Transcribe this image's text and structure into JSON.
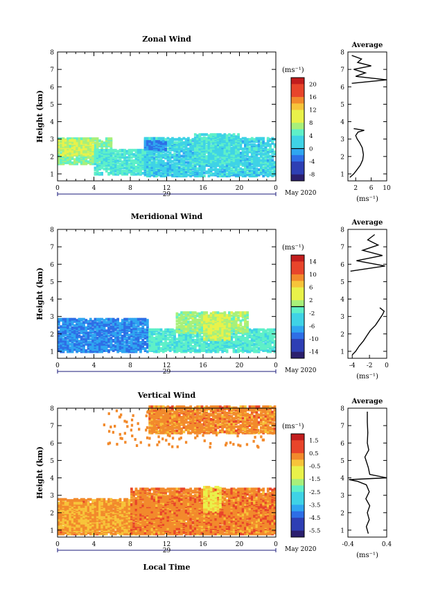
{
  "figure": {
    "date_label": "May 2020",
    "day_label": "29",
    "xlabel": "Local Time",
    "colors": {
      "axis": "#000000",
      "background": "#ffffff",
      "jet": [
        "#2b1f6e",
        "#2e3fb4",
        "#2e6ee6",
        "#2fa6f0",
        "#3fd3e6",
        "#5ff0c8",
        "#a8f07a",
        "#e9f24a",
        "#f7c43a",
        "#f28a2c",
        "#e8452b",
        "#c21d1d"
      ]
    }
  },
  "chart_data": [
    {
      "id": "zonal",
      "type": "heatmap",
      "title": "Zonal Wind",
      "ylabel": "Height (km)",
      "x_ticks": [
        "0",
        "4",
        "8",
        "12",
        "16",
        "20",
        "0"
      ],
      "y_ticks": [
        "1",
        "2",
        "3",
        "4",
        "5",
        "6",
        "7",
        "8"
      ],
      "xlim": [
        0,
        24
      ],
      "ylim": [
        0.6,
        8
      ],
      "colorbar": {
        "unit": "(ms⁻¹)",
        "ticks": [
          "20",
          "16",
          "12",
          "8",
          "4",
          "0",
          "-4",
          "-8"
        ],
        "range": [
          -10,
          22
        ],
        "zero_line": 0
      },
      "field": {
        "regions": [
          {
            "x": [
              0,
              6
            ],
            "y": [
              1.5,
              3.0
            ],
            "value": 6
          },
          {
            "x": [
              0,
              4
            ],
            "y": [
              2.0,
              2.9
            ],
            "value": 9
          },
          {
            "x": [
              4,
              10
            ],
            "y": [
              0.9,
              2.3
            ],
            "value": 4
          },
          {
            "x": [
              9.5,
              24
            ],
            "y": [
              0.8,
              3.0
            ],
            "value": 2
          },
          {
            "x": [
              15,
              20
            ],
            "y": [
              1.5,
              3.2
            ],
            "value": 3
          },
          {
            "x": [
              9.5,
              12
            ],
            "y": [
              2.3,
              2.8
            ],
            "value": -2
          }
        ]
      },
      "average_profile": {
        "title": "Average",
        "xlabel": "(ms⁻¹)",
        "x_ticks": [
          "2",
          "6",
          "10"
        ],
        "xlim": [
          0,
          10
        ],
        "height": [
          0.8,
          1.0,
          1.2,
          1.5,
          1.8,
          2.1,
          2.5,
          2.8,
          3.0,
          3.2,
          3.4,
          3.5,
          3.6,
          6.2,
          6.4,
          6.6,
          6.8,
          7.0,
          7.2,
          7.4,
          7.6,
          7.8
        ],
        "values": [
          0.5,
          1.5,
          2.2,
          3.2,
          3.8,
          4.0,
          3.7,
          3.0,
          2.4,
          2.0,
          2.6,
          4.2,
          1.5,
          1.0,
          10.0,
          2.0,
          4.5,
          1.5,
          6.0,
          2.5,
          3.5,
          1.0
        ]
      }
    },
    {
      "id": "meridional",
      "type": "heatmap",
      "title": "Meridional Wind",
      "ylabel": "Height (km)",
      "x_ticks": [
        "0",
        "4",
        "8",
        "12",
        "16",
        "20",
        "0"
      ],
      "y_ticks": [
        "1",
        "2",
        "3",
        "4",
        "5",
        "6",
        "7",
        "8"
      ],
      "xlim": [
        0,
        24
      ],
      "ylim": [
        0.6,
        8
      ],
      "colorbar": {
        "unit": "(ms⁻¹)",
        "ticks": [
          "14",
          "10",
          "6",
          "2",
          "-2",
          "-6",
          "-10",
          "-14"
        ],
        "range": [
          -16,
          16
        ],
        "zero_line": 0
      },
      "field": {
        "regions": [
          {
            "x": [
              0,
              10
            ],
            "y": [
              0.9,
              2.8
            ],
            "value": -8
          },
          {
            "x": [
              10,
              24
            ],
            "y": [
              0.9,
              2.2
            ],
            "value": -2
          },
          {
            "x": [
              13,
              21
            ],
            "y": [
              2.0,
              3.2
            ],
            "value": 1
          },
          {
            "x": [
              16,
              19
            ],
            "y": [
              1.6,
              3.0
            ],
            "value": 3
          }
        ]
      },
      "average_profile": {
        "title": "Average",
        "xlabel": "(ms⁻¹)",
        "x_ticks": [
          "-4",
          "-2",
          "0"
        ],
        "xlim": [
          -4.5,
          0
        ],
        "height": [
          0.8,
          1.0,
          1.3,
          1.6,
          1.9,
          2.2,
          2.5,
          2.8,
          3.1,
          3.3,
          3.5,
          5.6,
          5.9,
          6.2,
          6.5,
          6.8,
          7.1,
          7.4,
          7.7
        ],
        "values": [
          -4.0,
          -3.6,
          -3.2,
          -2.7,
          -2.3,
          -1.9,
          -1.3,
          -0.9,
          -0.5,
          -0.3,
          -0.8,
          -4.2,
          -0.2,
          -3.5,
          -0.5,
          -2.8,
          -1.0,
          -2.2,
          -1.4
        ]
      }
    },
    {
      "id": "vertical",
      "type": "heatmap",
      "title": "Vertical Wind",
      "ylabel": "Height (km)",
      "x_ticks": [
        "0",
        "4",
        "8",
        "12",
        "16",
        "20",
        "0"
      ],
      "y_ticks": [
        "1",
        "2",
        "3",
        "4",
        "5",
        "6",
        "7",
        "8"
      ],
      "xlim": [
        0,
        24
      ],
      "ylim": [
        0.6,
        8
      ],
      "colorbar": {
        "unit": "(ms⁻¹)",
        "ticks": [
          "1.5",
          "0.5",
          "-0.5",
          "-1.5",
          "-2.5",
          "-3.5",
          "-4.5",
          "-5.5"
        ],
        "range": [
          -6,
          2
        ],
        "zero_line": null
      },
      "field": {
        "regions": [
          {
            "x": [
              0,
              24
            ],
            "y": [
              0.7,
              2.7
            ],
            "value": 0.2
          },
          {
            "x": [
              0,
              8
            ],
            "y": [
              0.9,
              2.5
            ],
            "value": 0.0
          },
          {
            "x": [
              8,
              24
            ],
            "y": [
              0.7,
              3.3
            ],
            "value": 0.4
          },
          {
            "x": [
              16,
              18
            ],
            "y": [
              2.0,
              3.4
            ],
            "value": -0.8
          },
          {
            "x": [
              10,
              24
            ],
            "y": [
              6.5,
              8.0
            ],
            "value": 0.3
          }
        ]
      },
      "average_profile": {
        "title": "Average",
        "xlabel": "(ms⁻¹)",
        "x_ticks": [
          "-0.4",
          "0.4"
        ],
        "xlim": [
          -0.4,
          0.4
        ],
        "height": [
          0.8,
          1.2,
          1.6,
          2.0,
          2.4,
          2.8,
          3.2,
          3.6,
          3.8,
          3.9,
          4.0,
          4.2,
          4.6,
          5.2,
          5.6,
          6.0,
          6.6,
          7.2,
          7.8
        ],
        "values": [
          0.02,
          -0.02,
          0.04,
          0.0,
          0.05,
          -0.03,
          0.04,
          -0.02,
          -0.2,
          -0.38,
          0.4,
          0.05,
          0.02,
          -0.05,
          0.03,
          0.0,
          0.01,
          0.0,
          0.0
        ]
      }
    }
  ]
}
